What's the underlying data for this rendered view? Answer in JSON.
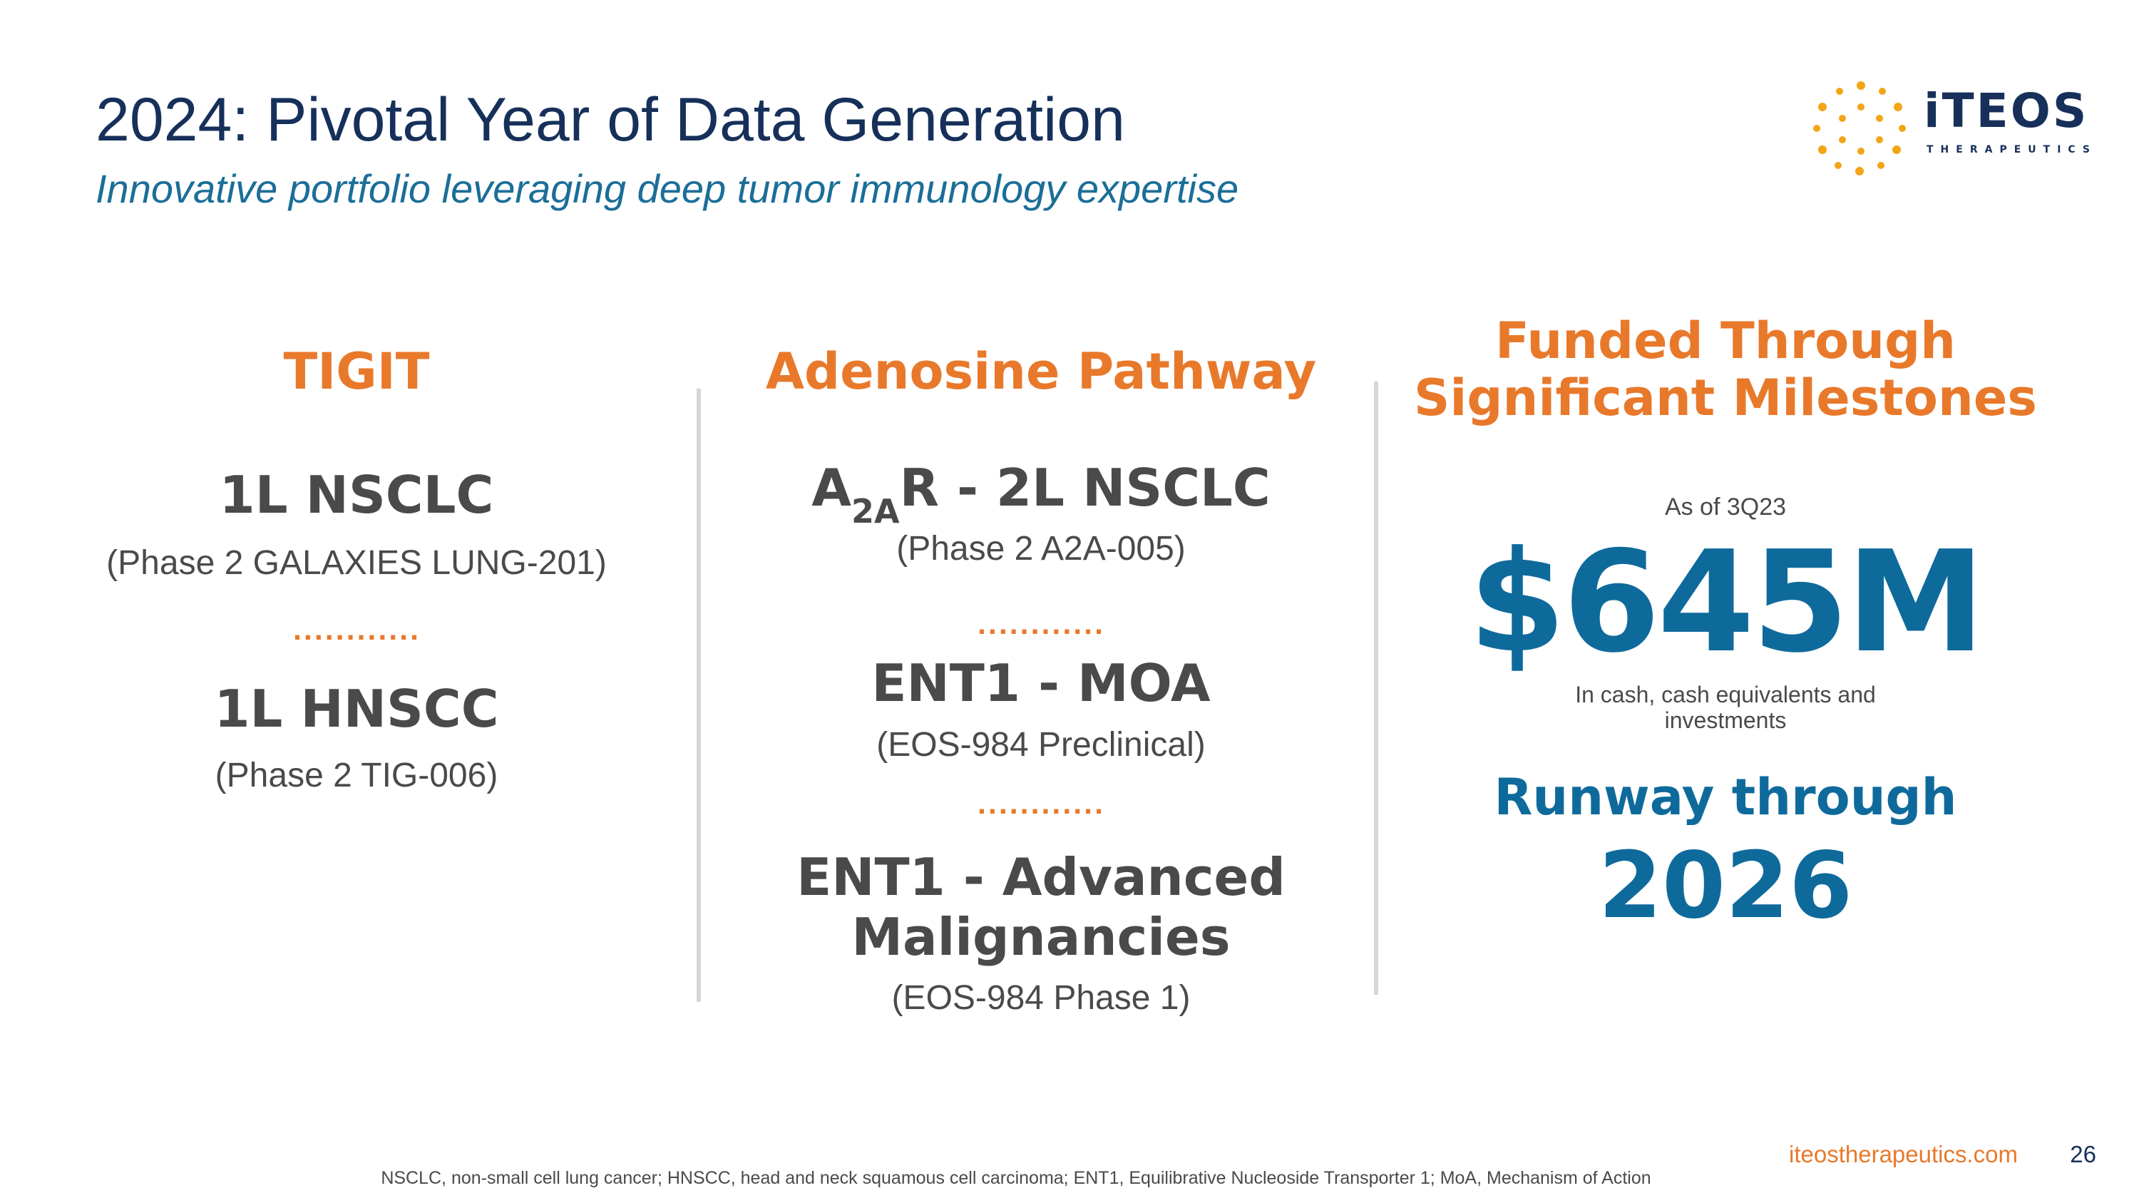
{
  "header": {
    "title": "2024: Pivotal Year of Data Generation",
    "subtitle": "Innovative portfolio leveraging deep tumor immunology expertise"
  },
  "logo": {
    "wordmark": "iTEOS",
    "tagline": "THERAPEUTICS",
    "colors": {
      "dots": "#f2a516",
      "text": "#16305a"
    }
  },
  "tigit": {
    "heading": "TIGIT",
    "items": [
      {
        "title": "1L NSCLC",
        "detail": "(Phase 2 GALAXIES LUNG-201)"
      },
      {
        "title": "1L HNSCC",
        "detail": "(Phase 2 TIG-006)"
      }
    ],
    "separator": "............"
  },
  "adenosine": {
    "heading": "Adenosine Pathway",
    "a2ar": {
      "prefix": "A",
      "subscript": "2A",
      "suffix": "R - 2L NSCLC",
      "detail": "(Phase 2 A2A-005)"
    },
    "ent1_moa": {
      "title": "ENT1 - MOA",
      "detail": "(EOS-984 Preclinical)"
    },
    "ent1_adv": {
      "title_line1": "ENT1 - Advanced",
      "title_line2": "Malignancies",
      "detail": "(EOS-984 Phase 1)"
    },
    "separator": "............"
  },
  "funding": {
    "heading_line1": "Funded Through",
    "heading_line2": "Significant Milestones",
    "as_of": "As of 3Q23",
    "amount": "$645M",
    "amount_note": "In cash, cash equivalents and investments",
    "runway_label": "Runway through",
    "runway_year": "2026"
  },
  "footer": {
    "url": "iteostherapeutics.com",
    "page_number": "26",
    "footnote": "NSCLC, non-small cell lung cancer; HNSCC, head and neck squamous cell carcinoma; ENT1, Equilibrative Nucleoside Transporter 1; MoA, Mechanism of Action"
  },
  "colors": {
    "navy": "#16305a",
    "orange": "#e8792b",
    "blue": "#0f6a9c",
    "gray": "#4a4a4a",
    "divider": "#d6d6d6"
  }
}
